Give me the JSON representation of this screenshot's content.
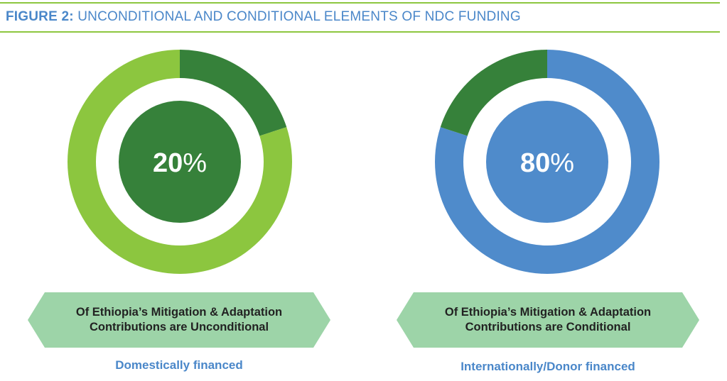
{
  "header": {
    "figure_label": "FIGURE 2:",
    "title": "UNCONDITIONAL AND CONDITIONAL ELEMENTS OF NDC FUNDING"
  },
  "colors": {
    "header_blue": "#4a87c9",
    "rule_green": "#8dc63f",
    "dark_green": "#36813a",
    "light_green": "#8cc63f",
    "blue": "#4f8bcb",
    "banner_fill": "#9dd4a8",
    "caption_blue": "#4a87c9"
  },
  "chart_data": [
    {
      "type": "pie",
      "variant": "donut",
      "center_value": "20",
      "center_unit": "%",
      "slices": [
        {
          "value": 20,
          "color": "#36813a"
        },
        {
          "value": 80,
          "color": "#8cc63f"
        }
      ],
      "center_fill": "#36813a",
      "banner_lines": [
        "Of Ethiopia’s Mitigation & Adaptation",
        "Contributions are Unconditional"
      ],
      "caption": "Domestically financed"
    },
    {
      "type": "pie",
      "variant": "donut",
      "center_value": "80",
      "center_unit": "%",
      "slices": [
        {
          "value": 80,
          "color": "#4f8bcb"
        },
        {
          "value": 20,
          "color": "#36813a"
        }
      ],
      "center_fill": "#4f8bcb",
      "banner_lines": [
        "Of Ethiopia’s Mitigation & Adaptation",
        "Contributions are Conditional"
      ],
      "caption": "Internationally/Donor financed"
    }
  ]
}
